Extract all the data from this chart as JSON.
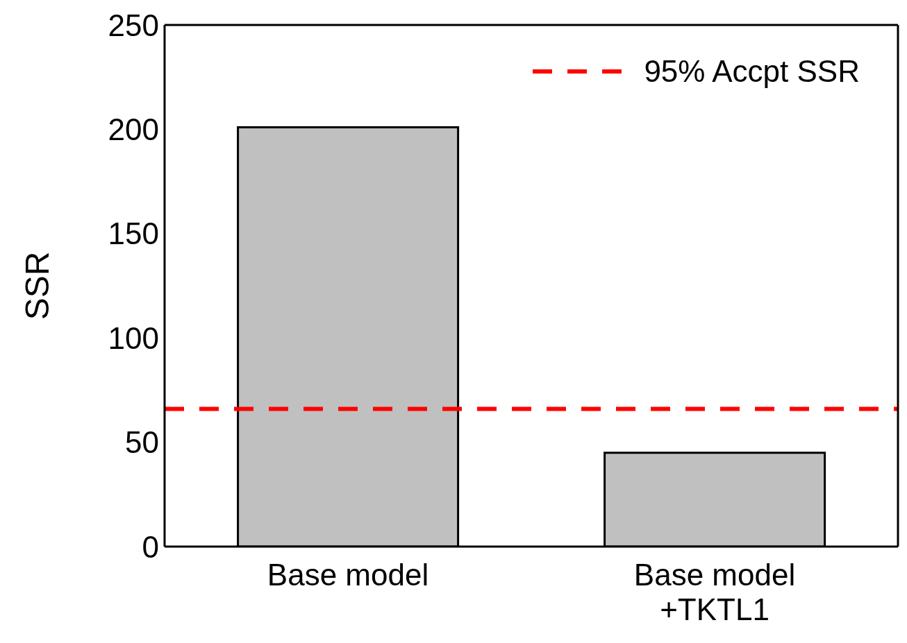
{
  "chart_data": {
    "type": "bar",
    "categories": [
      "Base model",
      "Base model\n+TKTL1"
    ],
    "values": [
      201,
      45
    ],
    "color": "#c0c0c0",
    "ylabel": "SSR",
    "ylim": [
      0,
      250
    ],
    "yticks": [
      0,
      50,
      100,
      150,
      200,
      250
    ],
    "grid": false,
    "legend": "top right",
    "ref_lines": [
      {
        "axis": "y",
        "value": 66,
        "label": "95% Accpt SSR",
        "color": "#ff0000",
        "line_style": "dashed"
      }
    ]
  }
}
